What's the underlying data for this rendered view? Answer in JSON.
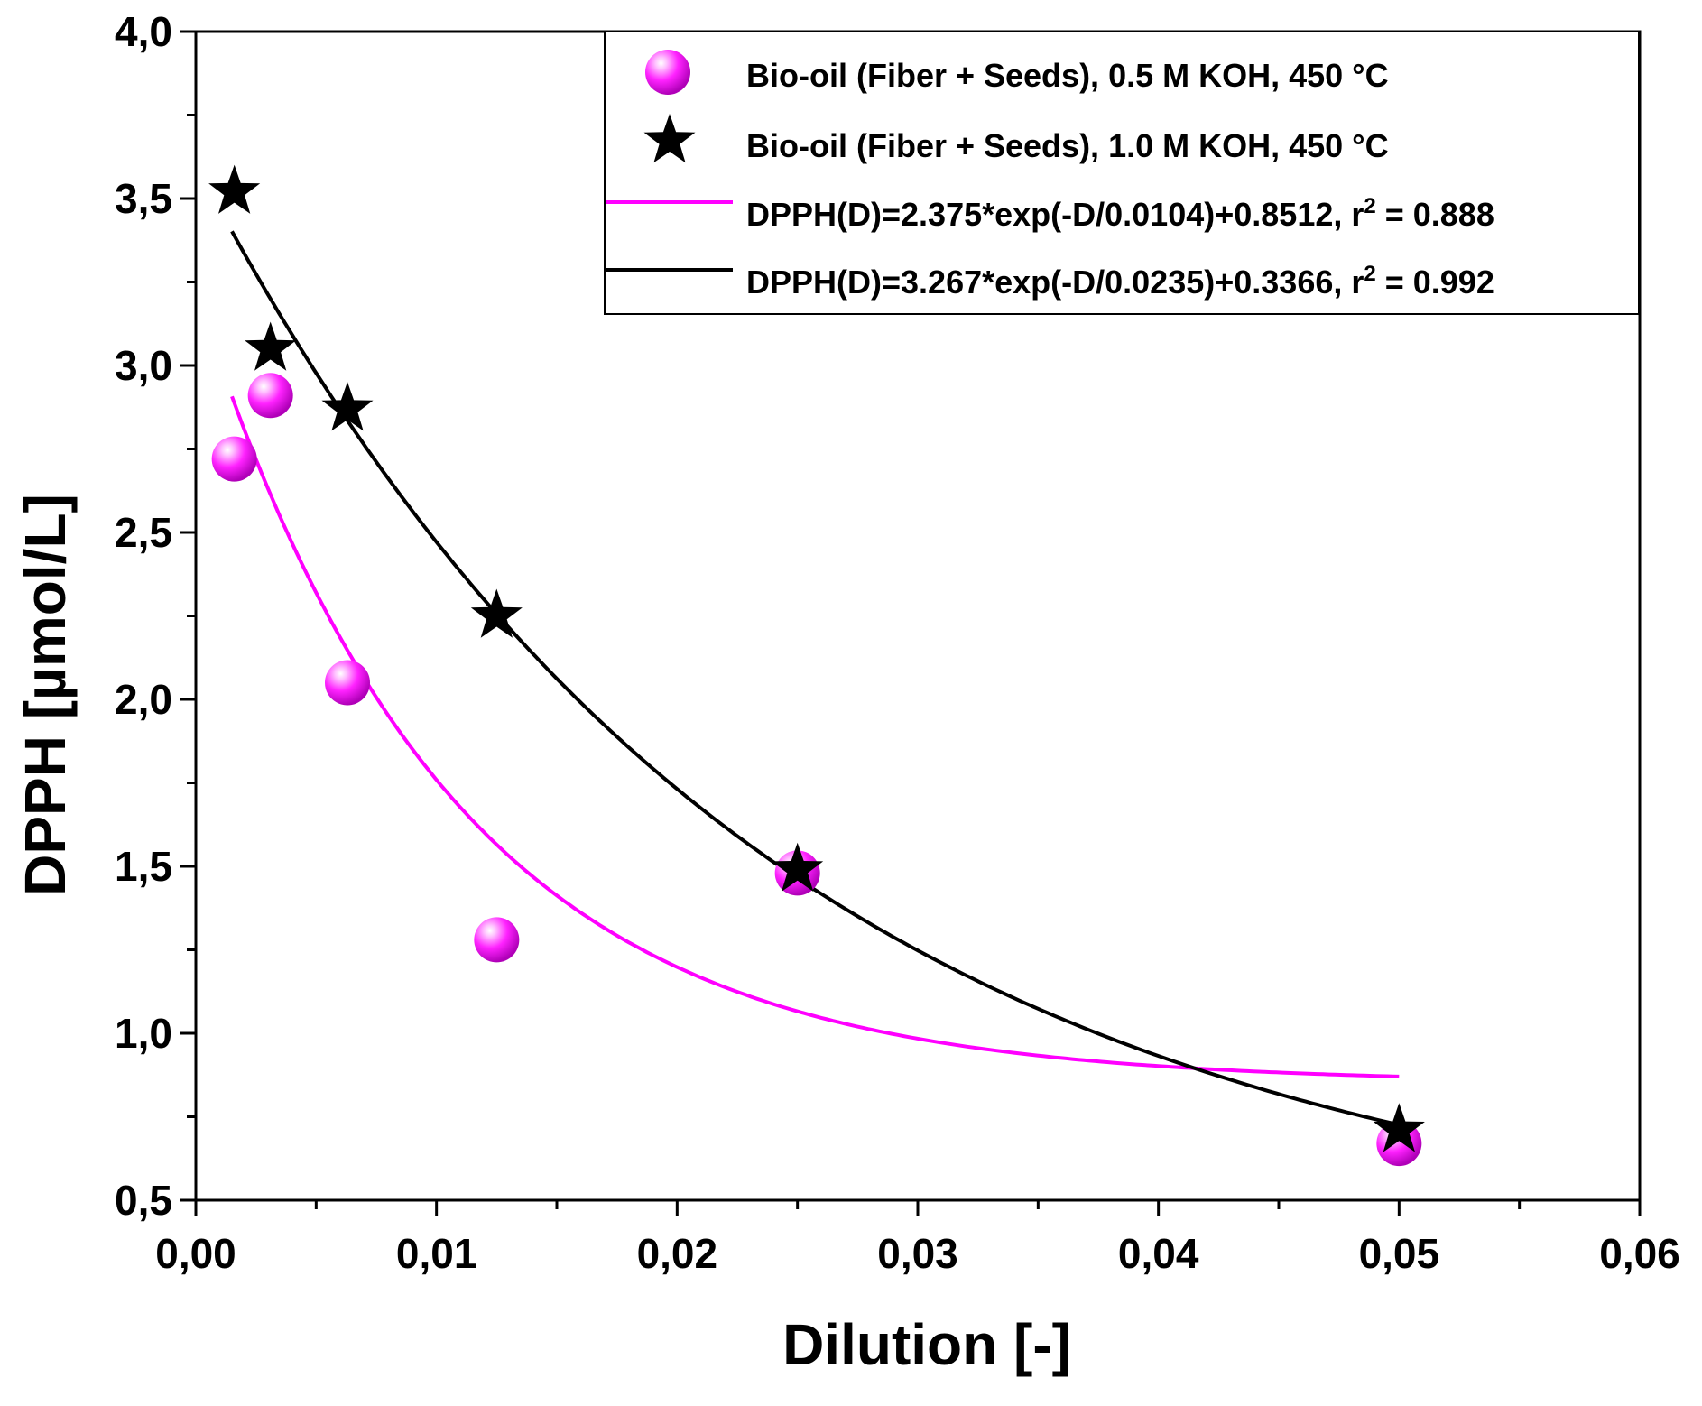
{
  "chart_data": {
    "type": "scatter",
    "xlabel": "Dilution [-]",
    "ylabel": "DPPH [µmol/L]",
    "xlim": [
      0,
      0.06
    ],
    "ylim": [
      0.5,
      4.0
    ],
    "x_ticks": [
      "0,00",
      "0,01",
      "0,02",
      "0,03",
      "0,04",
      "0,05",
      "0,06"
    ],
    "x_tick_values": [
      0,
      0.01,
      0.02,
      0.03,
      0.04,
      0.05,
      0.06
    ],
    "y_ticks": [
      "0,5",
      "1,0",
      "1,5",
      "2,0",
      "2,5",
      "3,0",
      "3,5",
      "4,0"
    ],
    "y_tick_values": [
      0.5,
      1.0,
      1.5,
      2.0,
      2.5,
      3.0,
      3.5,
      4.0
    ],
    "grid": false,
    "legend_position": "top-right",
    "series": [
      {
        "name": "Bio-oil (Fiber + Seeds), 0.5 M KOH, 450 °C",
        "marker": "sphere",
        "color": "#ff00ff",
        "x": [
          0.0016,
          0.0031,
          0.0063,
          0.0125,
          0.025,
          0.05
        ],
        "y": [
          2.72,
          2.91,
          2.05,
          1.28,
          1.48,
          0.67
        ]
      },
      {
        "name": "Bio-oil (Fiber + Seeds), 1.0 M KOH, 450 °C",
        "marker": "star",
        "color": "#000000",
        "x": [
          0.0016,
          0.0031,
          0.0063,
          0.0125,
          0.025,
          0.05
        ],
        "y": [
          3.52,
          3.05,
          2.87,
          2.25,
          1.49,
          0.71
        ]
      }
    ],
    "fits": [
      {
        "label_main": "DPPH(D)=2.375*exp(-D/0.0104)+0.8512, r",
        "label_sup": "2",
        "label_tail": " = 0.888",
        "color": "#ff00ff",
        "a": 2.375,
        "t": 0.0104,
        "c": 0.8512,
        "domain": [
          0.0015,
          0.05
        ]
      },
      {
        "label_main": "DPPH(D)=3.267*exp(-D/0.0235)+0.3366, r",
        "label_sup": "2",
        "label_tail": " = 0.992",
        "color": "#000000",
        "a": 3.267,
        "t": 0.0235,
        "c": 0.3366,
        "domain": [
          0.0015,
          0.05
        ]
      }
    ]
  }
}
